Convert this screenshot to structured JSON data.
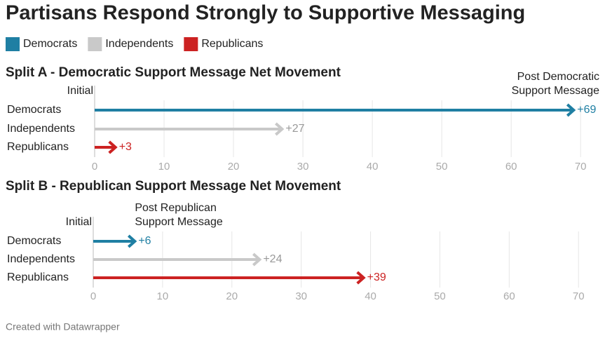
{
  "title": "Partisans Respond Strongly to Supportive Messaging",
  "legend": [
    {
      "name": "Democrats",
      "color": "#1f7fa3"
    },
    {
      "name": "Independents",
      "color": "#c9c9c9"
    },
    {
      "name": "Republicans",
      "color": "#cc2222"
    }
  ],
  "footer": "Created with Datawrapper",
  "chart_data": [
    {
      "type": "arrow",
      "title": "Split A - Democratic Support Message Net Movement",
      "categories": [
        "Democrats",
        "Independents",
        "Republicans"
      ],
      "values": [
        69,
        27,
        3
      ],
      "value_labels": [
        "+69",
        "+27",
        "+3"
      ],
      "colors": [
        "#1f7fa3",
        "#c9c9c9",
        "#cc2222"
      ],
      "annotations": [
        "Initial",
        "Post Democratic Support Message"
      ],
      "xlim": [
        0,
        72
      ],
      "xticks": [
        0,
        10,
        20,
        30,
        40,
        50,
        60,
        70
      ],
      "grid": true
    },
    {
      "type": "arrow",
      "title": "Split B - Republican Support Message Net Movement",
      "categories": [
        "Democrats",
        "Independents",
        "Republicans"
      ],
      "values": [
        6,
        24,
        39
      ],
      "value_labels": [
        "+6",
        "+24",
        "+39"
      ],
      "colors": [
        "#1f7fa3",
        "#c9c9c9",
        "#cc2222"
      ],
      "annotations": [
        "Initial",
        "Post Republican Support Message"
      ],
      "xlim": [
        0,
        72
      ],
      "xticks": [
        0,
        10,
        20,
        30,
        40,
        50,
        60,
        70
      ],
      "grid": true
    }
  ]
}
